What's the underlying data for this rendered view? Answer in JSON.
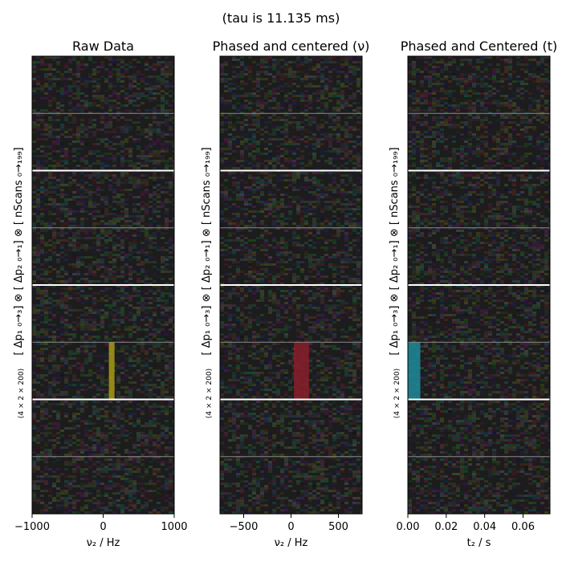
{
  "figure": {
    "suptitle": "(tau is 11.135 ms)"
  },
  "chart_data": [
    {
      "type": "heatmap",
      "title": "Raw Data",
      "xlabel": "ν₂ / Hz",
      "ylabel_main": "[ Δp₁ ₀→₃] ⊗ [ Δp₂ ₀→₁] ⊗ [ nScans ₀→₁₉₉]",
      "ylabel_shape": "(4 × 2 × 200)",
      "xlim": [
        -1000,
        1000
      ],
      "xticks": [
        -1000,
        0,
        1000
      ],
      "xtick_labels": [
        "−1000",
        "0",
        "1000"
      ],
      "row_blocks": 8,
      "signal_block": 5,
      "signal_center": 120,
      "signal_halfwidth": 40,
      "signal_color": "#a89a18",
      "noise": "random color noise"
    },
    {
      "type": "heatmap",
      "title": "Phased and centered (ν)",
      "xlabel": "ν₂ / Hz",
      "ylabel_main": "[ Δp₁ ₀→₃] ⊗ [ Δp₂ ₀→₁] ⊗ [ nScans ₀→₁₉₉]",
      "ylabel_shape": "(4 × 2 × 200)",
      "xlim": [
        -750,
        750
      ],
      "xticks": [
        -500,
        0,
        500
      ],
      "xtick_labels": [
        "−500",
        "0",
        "500"
      ],
      "row_blocks": 8,
      "signal_block": 5,
      "signal_center": 110,
      "signal_halfwidth": 80,
      "signal_color": "#8a1d2a",
      "noise": "random color noise"
    },
    {
      "type": "heatmap",
      "title": "Phased and Centered (t)",
      "xlabel": "t₂ / s",
      "ylabel_main": "[ Δp₁ ₀→₃] ⊗ [ Δp₂ ₀→₁] ⊗ [ nScans ₀→₁₉₉]",
      "ylabel_shape": "(4 × 2 × 200)",
      "xlim": [
        0,
        0.074
      ],
      "xticks": [
        0.0,
        0.02,
        0.04,
        0.06
      ],
      "xtick_labels": [
        "0.00",
        "0.02",
        "0.04",
        "0.06"
      ],
      "row_blocks": 8,
      "signal_block": 5,
      "signal_center": 0.003,
      "signal_halfwidth": 0.0035,
      "signal_color": "#1f8a9a",
      "noise": "random color noise"
    }
  ],
  "colors": {
    "noise_base": "#1c1c1c",
    "thick_separator": "#ffffff",
    "thin_separator": "#8a8a8a"
  }
}
